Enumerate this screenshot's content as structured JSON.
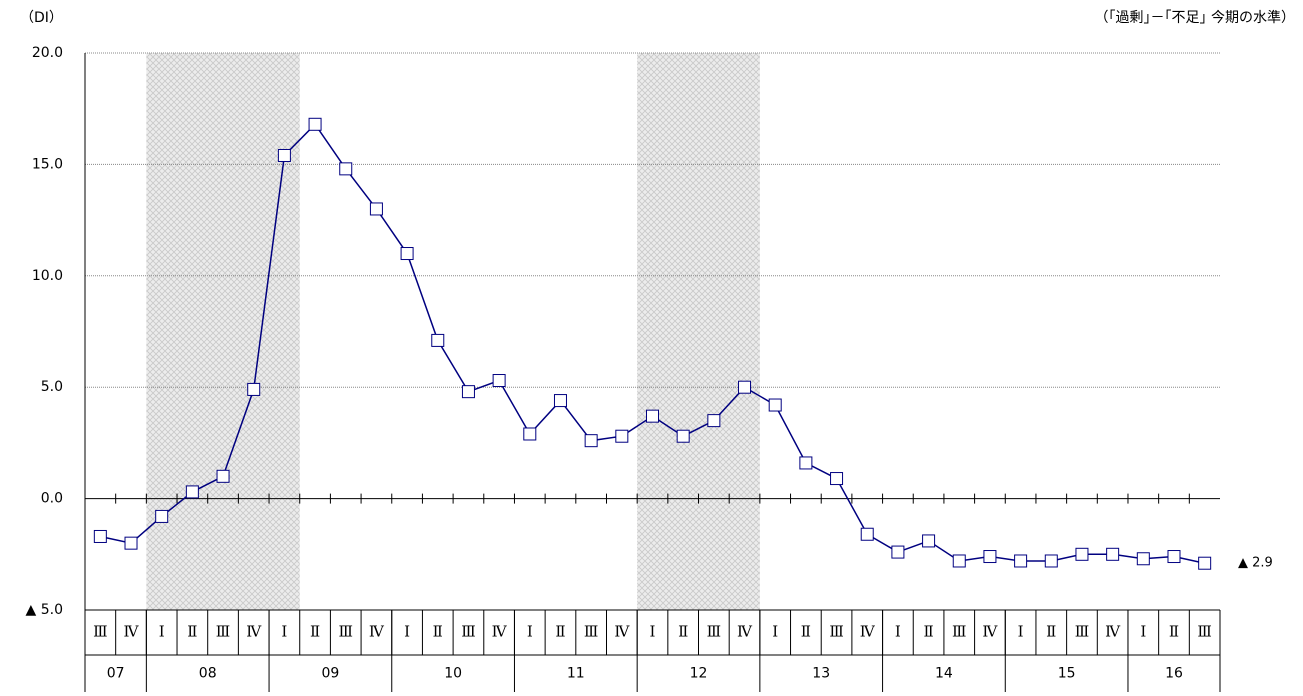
{
  "chart_data": {
    "type": "line",
    "y_label": "（DI）",
    "note": "（｢過剰｣－｢不足｣ 今期の水準）",
    "categories": [
      "Ⅲ",
      "Ⅳ",
      "Ⅰ",
      "Ⅱ",
      "Ⅲ",
      "Ⅳ",
      "Ⅰ",
      "Ⅱ",
      "Ⅲ",
      "Ⅳ",
      "Ⅰ",
      "Ⅱ",
      "Ⅲ",
      "Ⅳ",
      "Ⅰ",
      "Ⅱ",
      "Ⅲ",
      "Ⅳ",
      "Ⅰ",
      "Ⅱ",
      "Ⅲ",
      "Ⅳ",
      "Ⅰ",
      "Ⅱ",
      "Ⅲ",
      "Ⅳ",
      "Ⅰ",
      "Ⅱ",
      "Ⅲ",
      "Ⅳ",
      "Ⅰ",
      "Ⅱ",
      "Ⅲ",
      "Ⅳ",
      "Ⅰ",
      "Ⅱ",
      "Ⅲ"
    ],
    "year_groups": [
      {
        "label": "07",
        "start": 0,
        "end": 1
      },
      {
        "label": "08",
        "start": 2,
        "end": 5
      },
      {
        "label": "09",
        "start": 6,
        "end": 9
      },
      {
        "label": "10",
        "start": 10,
        "end": 13
      },
      {
        "label": "11",
        "start": 14,
        "end": 17
      },
      {
        "label": "12",
        "start": 18,
        "end": 21
      },
      {
        "label": "13",
        "start": 22,
        "end": 25
      },
      {
        "label": "14",
        "start": 26,
        "end": 29
      },
      {
        "label": "15",
        "start": 30,
        "end": 33
      },
      {
        "label": "16",
        "start": 34,
        "end": 36
      }
    ],
    "series": [
      {
        "color": "#000080",
        "values": [
          -1.7,
          -2.0,
          -0.8,
          0.3,
          1.0,
          4.9,
          15.4,
          16.8,
          14.8,
          13.0,
          11.0,
          7.1,
          4.8,
          5.3,
          2.9,
          4.4,
          2.6,
          2.8,
          3.7,
          2.8,
          3.5,
          5.0,
          4.2,
          1.6,
          0.9,
          -1.6,
          -2.4,
          -1.9,
          -2.8,
          -2.6,
          -2.8,
          -2.8,
          -2.5,
          -2.5,
          -2.7,
          -2.6,
          -2.9
        ],
        "value_labels": [
          null,
          null,
          null,
          null,
          null,
          null,
          null,
          null,
          null,
          null,
          null,
          null,
          null,
          null,
          null,
          null,
          null,
          null,
          null,
          null,
          null,
          null,
          null,
          null,
          null,
          null,
          null,
          null,
          null,
          null,
          null,
          null,
          null,
          null,
          null,
          null,
          "▲ 2.9"
        ]
      }
    ],
    "shaded": [
      {
        "start": 2,
        "end": 6
      },
      {
        "start": 18,
        "end": 21
      }
    ],
    "ylim": [
      -5,
      20
    ],
    "yticks": [
      {
        "value": -5,
        "label": "▲ 5.0"
      },
      {
        "value": 0,
        "label": "0.0"
      },
      {
        "value": 5,
        "label": "5.0"
      },
      {
        "value": 10,
        "label": "10.0"
      },
      {
        "value": 15,
        "label": "15.0"
      },
      {
        "value": 20,
        "label": "20.0"
      }
    ],
    "grid": true
  }
}
